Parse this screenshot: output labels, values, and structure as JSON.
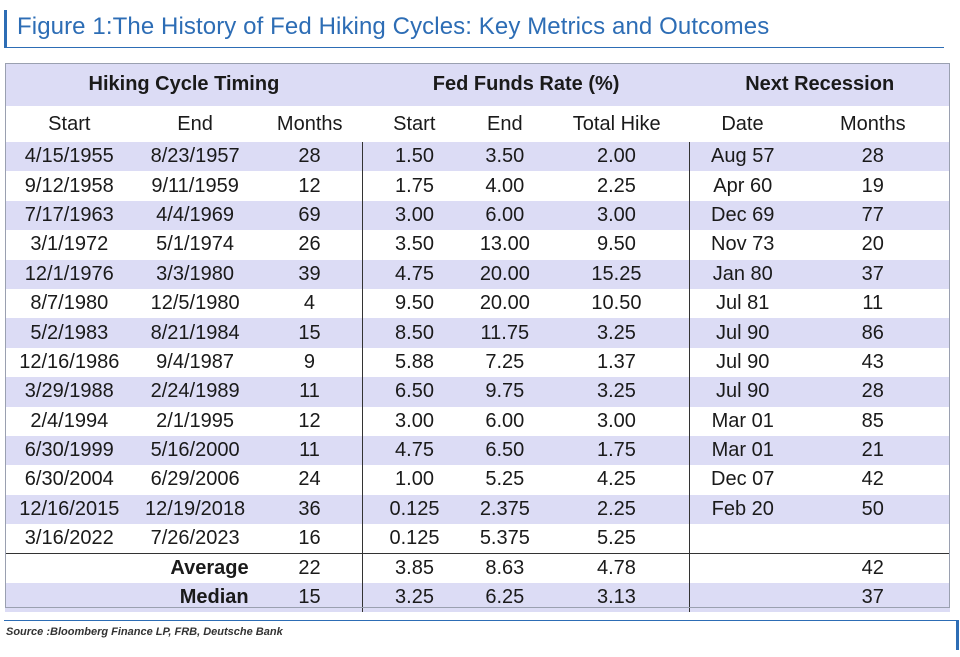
{
  "title": "Figure 1:The History of Fed Hiking Cycles: Key Metrics and Outcomes",
  "groups": {
    "timing": "Hiking Cycle Timing",
    "rate": "Fed Funds Rate (%)",
    "recession": "Next Recession"
  },
  "columns": {
    "start": "Start",
    "end": "End",
    "months": "Months",
    "rate_start": "Start",
    "rate_end": "End",
    "total_hike": "Total Hike",
    "rec_date": "Date",
    "rec_months": "Months"
  },
  "rows": [
    {
      "start": "4/15/1955",
      "end": "8/23/1957",
      "months": "28",
      "rate_start": "1.50",
      "rate_end": "3.50",
      "total_hike": "2.00",
      "rec_date": "Aug 57",
      "rec_months": "28"
    },
    {
      "start": "9/12/1958",
      "end": "9/11/1959",
      "months": "12",
      "rate_start": "1.75",
      "rate_end": "4.00",
      "total_hike": "2.25",
      "rec_date": "Apr 60",
      "rec_months": "19"
    },
    {
      "start": "7/17/1963",
      "end": "4/4/1969",
      "months": "69",
      "rate_start": "3.00",
      "rate_end": "6.00",
      "total_hike": "3.00",
      "rec_date": "Dec 69",
      "rec_months": "77"
    },
    {
      "start": "3/1/1972",
      "end": "5/1/1974",
      "months": "26",
      "rate_start": "3.50",
      "rate_end": "13.00",
      "total_hike": "9.50",
      "rec_date": "Nov 73",
      "rec_months": "20"
    },
    {
      "start": "12/1/1976",
      "end": "3/3/1980",
      "months": "39",
      "rate_start": "4.75",
      "rate_end": "20.00",
      "total_hike": "15.25",
      "rec_date": "Jan 80",
      "rec_months": "37"
    },
    {
      "start": "8/7/1980",
      "end": "12/5/1980",
      "months": "4",
      "rate_start": "9.50",
      "rate_end": "20.00",
      "total_hike": "10.50",
      "rec_date": "Jul 81",
      "rec_months": "11"
    },
    {
      "start": "5/2/1983",
      "end": "8/21/1984",
      "months": "15",
      "rate_start": "8.50",
      "rate_end": "11.75",
      "total_hike": "3.25",
      "rec_date": "Jul 90",
      "rec_months": "86"
    },
    {
      "start": "12/16/1986",
      "end": "9/4/1987",
      "months": "9",
      "rate_start": "5.88",
      "rate_end": "7.25",
      "total_hike": "1.37",
      "rec_date": "Jul 90",
      "rec_months": "43"
    },
    {
      "start": "3/29/1988",
      "end": "2/24/1989",
      "months": "11",
      "rate_start": "6.50",
      "rate_end": "9.75",
      "total_hike": "3.25",
      "rec_date": "Jul 90",
      "rec_months": "28"
    },
    {
      "start": "2/4/1994",
      "end": "2/1/1995",
      "months": "12",
      "rate_start": "3.00",
      "rate_end": "6.00",
      "total_hike": "3.00",
      "rec_date": "Mar 01",
      "rec_months": "85"
    },
    {
      "start": "6/30/1999",
      "end": "5/16/2000",
      "months": "11",
      "rate_start": "4.75",
      "rate_end": "6.50",
      "total_hike": "1.75",
      "rec_date": "Mar 01",
      "rec_months": "21"
    },
    {
      "start": "6/30/2004",
      "end": "6/29/2006",
      "months": "24",
      "rate_start": "1.00",
      "rate_end": "5.25",
      "total_hike": "4.25",
      "rec_date": "Dec 07",
      "rec_months": "42"
    },
    {
      "start": "12/16/2015",
      "end": "12/19/2018",
      "months": "36",
      "rate_start": "0.125",
      "rate_end": "2.375",
      "total_hike": "2.25",
      "rec_date": "Feb 20",
      "rec_months": "50"
    },
    {
      "start": "3/16/2022",
      "end": "7/26/2023",
      "months": "16",
      "rate_start": "0.125",
      "rate_end": "5.375",
      "total_hike": "5.25",
      "rec_date": "",
      "rec_months": ""
    }
  ],
  "summary": [
    {
      "label": "Average",
      "months": "22",
      "rate_start": "3.85",
      "rate_end": "8.63",
      "total_hike": "4.78",
      "rec_date": "",
      "rec_months": "42"
    },
    {
      "label": "Median",
      "months": "15",
      "rate_start": "3.25",
      "rate_end": "6.25",
      "total_hike": "3.13",
      "rec_date": "",
      "rec_months": "37"
    }
  ],
  "source": "Source :Bloomberg Finance LP, FRB, Deutsche Bank",
  "colors": {
    "accent": "#2d6db5",
    "row_shade": "#dcdcf5"
  }
}
